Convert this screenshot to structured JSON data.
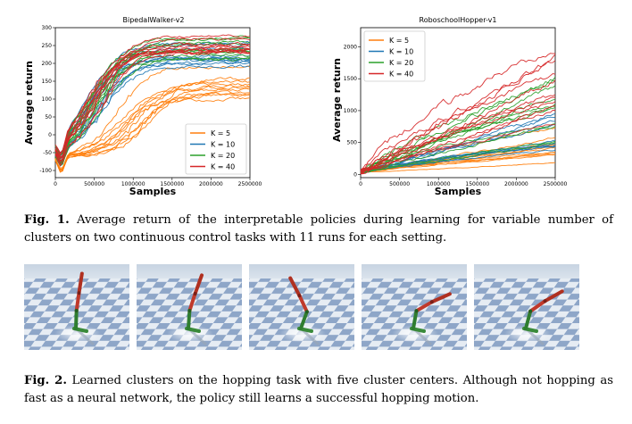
{
  "figure1": {
    "caption_label": "Fig. 1.",
    "caption_text": "Average return of the interpretable policies during learning for variable number of clusters on two continuous control tasks with 11 runs for each setting.",
    "chart_data": [
      {
        "type": "line",
        "title": "BipedalWalker-v2",
        "xlabel": "Samples",
        "ylabel": "Average return",
        "xlim": [
          0,
          2500000
        ],
        "ylim": [
          -120,
          300
        ],
        "xticks": [
          0,
          500000,
          1000000,
          1500000,
          2000000,
          2500000
        ],
        "yticks": [
          -100,
          -50,
          0,
          50,
          100,
          150,
          200,
          250,
          300
        ],
        "legend_position": "lower-right",
        "series": [
          {
            "name": "K = 5",
            "color": "#ff7f0e",
            "runs": 11,
            "final_range": [
              100,
              200
            ],
            "start": -60
          },
          {
            "name": "K = 10",
            "color": "#1f77b4",
            "runs": 11,
            "final_range": [
              190,
              260
            ],
            "start": -60
          },
          {
            "name": "K = 20",
            "color": "#2ca02c",
            "runs": 11,
            "final_range": [
              210,
              280
            ],
            "start": -60
          },
          {
            "name": "K = 40",
            "color": "#d62728",
            "runs": 11,
            "final_range": [
              230,
              280
            ],
            "start": -60
          }
        ]
      },
      {
        "type": "line",
        "title": "RoboschoolHopper-v1",
        "xlabel": "Samples",
        "ylabel": "Average return",
        "xlim": [
          0,
          2500000
        ],
        "ylim": [
          -50,
          2300
        ],
        "xticks": [
          0,
          500000,
          1000000,
          1500000,
          2000000,
          2500000
        ],
        "yticks": [
          0,
          500,
          1000,
          1500,
          2000
        ],
        "legend_position": "upper-left",
        "series": [
          {
            "name": "K = 5",
            "color": "#ff7f0e",
            "runs": 11,
            "final_range": [
              100,
              750
            ],
            "start": 30
          },
          {
            "name": "K = 10",
            "color": "#1f77b4",
            "runs": 11,
            "final_range": [
              350,
              1000
            ],
            "start": 30
          },
          {
            "name": "K = 20",
            "color": "#2ca02c",
            "runs": 11,
            "final_range": [
              500,
              1550
            ],
            "start": 30
          },
          {
            "name": "K = 40",
            "color": "#d62728",
            "runs": 11,
            "final_range": [
              700,
              2150
            ],
            "start": 30
          }
        ]
      }
    ]
  },
  "figure2": {
    "caption_label": "Fig. 2.",
    "caption_text": "Learned clusters on the hopping task with five cluster centers. Although not hopping as fast as a neural network, the policy still learns a successful hopping motion.",
    "frames": [
      {
        "pose": "upright-tilted",
        "thigh_deg": 8,
        "shin_deg": 2,
        "foot_deg": 70
      },
      {
        "pose": "leaning-forward",
        "thigh_deg": 18,
        "shin_deg": 4,
        "foot_deg": 70
      },
      {
        "pose": "knee-bent",
        "thigh_deg": -25,
        "shin_deg": 20,
        "foot_deg": 80
      },
      {
        "pose": "torso-forward",
        "thigh_deg": 60,
        "shin_deg": 10,
        "foot_deg": 80
      },
      {
        "pose": "crouched-forward",
        "thigh_deg": 55,
        "shin_deg": 15,
        "foot_deg": 80
      }
    ]
  }
}
